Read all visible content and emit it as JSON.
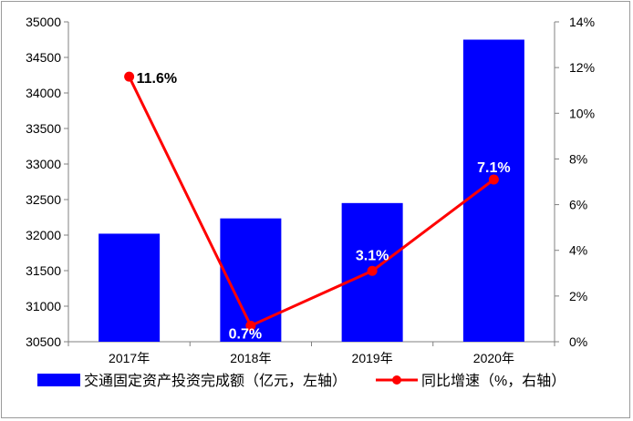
{
  "chart_data": {
    "type": "bar+line",
    "categories": [
      "2017年",
      "2018年",
      "2019年",
      "2020年"
    ],
    "series": [
      {
        "name": "交通固定资产投资完成额（亿元，左轴）",
        "type": "bar",
        "axis": "left",
        "color": "#0000ff",
        "values": [
          32020,
          32235,
          32451,
          34750
        ]
      },
      {
        "name": "同比增速（%，右轴）",
        "type": "line",
        "axis": "right",
        "color": "#ff0000",
        "values": [
          11.6,
          0.7,
          3.1,
          7.1
        ],
        "labels": [
          "11.6%",
          "0.7%",
          "3.1%",
          "7.1%"
        ]
      }
    ],
    "left_axis": {
      "min": 30500,
      "max": 35000,
      "step": 500,
      "ticks": [
        "30500",
        "31000",
        "31500",
        "32000",
        "32500",
        "33000",
        "33500",
        "34000",
        "34500",
        "35000"
      ]
    },
    "right_axis": {
      "min": 0,
      "max": 14,
      "step": 2,
      "ticks": [
        "0%",
        "2%",
        "4%",
        "6%",
        "8%",
        "10%",
        "12%",
        "14%"
      ]
    },
    "legend_position": "bottom",
    "grid": false
  }
}
